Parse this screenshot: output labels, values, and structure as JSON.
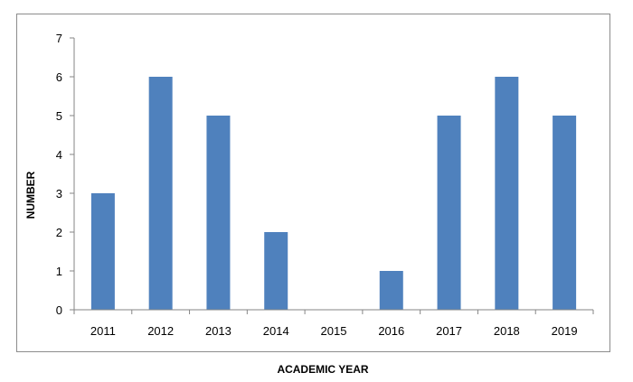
{
  "chart_data": {
    "type": "bar",
    "title": "",
    "xlabel": "ACADEMIC YEAR",
    "ylabel": "NUMBER",
    "categories": [
      "2011",
      "2012",
      "2013",
      "2014",
      "2015",
      "2016",
      "2017",
      "2018",
      "2019"
    ],
    "values": [
      3,
      6,
      5,
      2,
      0,
      1,
      5,
      6,
      5
    ],
    "ylim": [
      0,
      7
    ],
    "yticks": [
      "0",
      "1",
      "2",
      "3",
      "4",
      "5",
      "6",
      "7"
    ],
    "grid": false,
    "legend": "none",
    "bar_color": "#4f81bd"
  }
}
